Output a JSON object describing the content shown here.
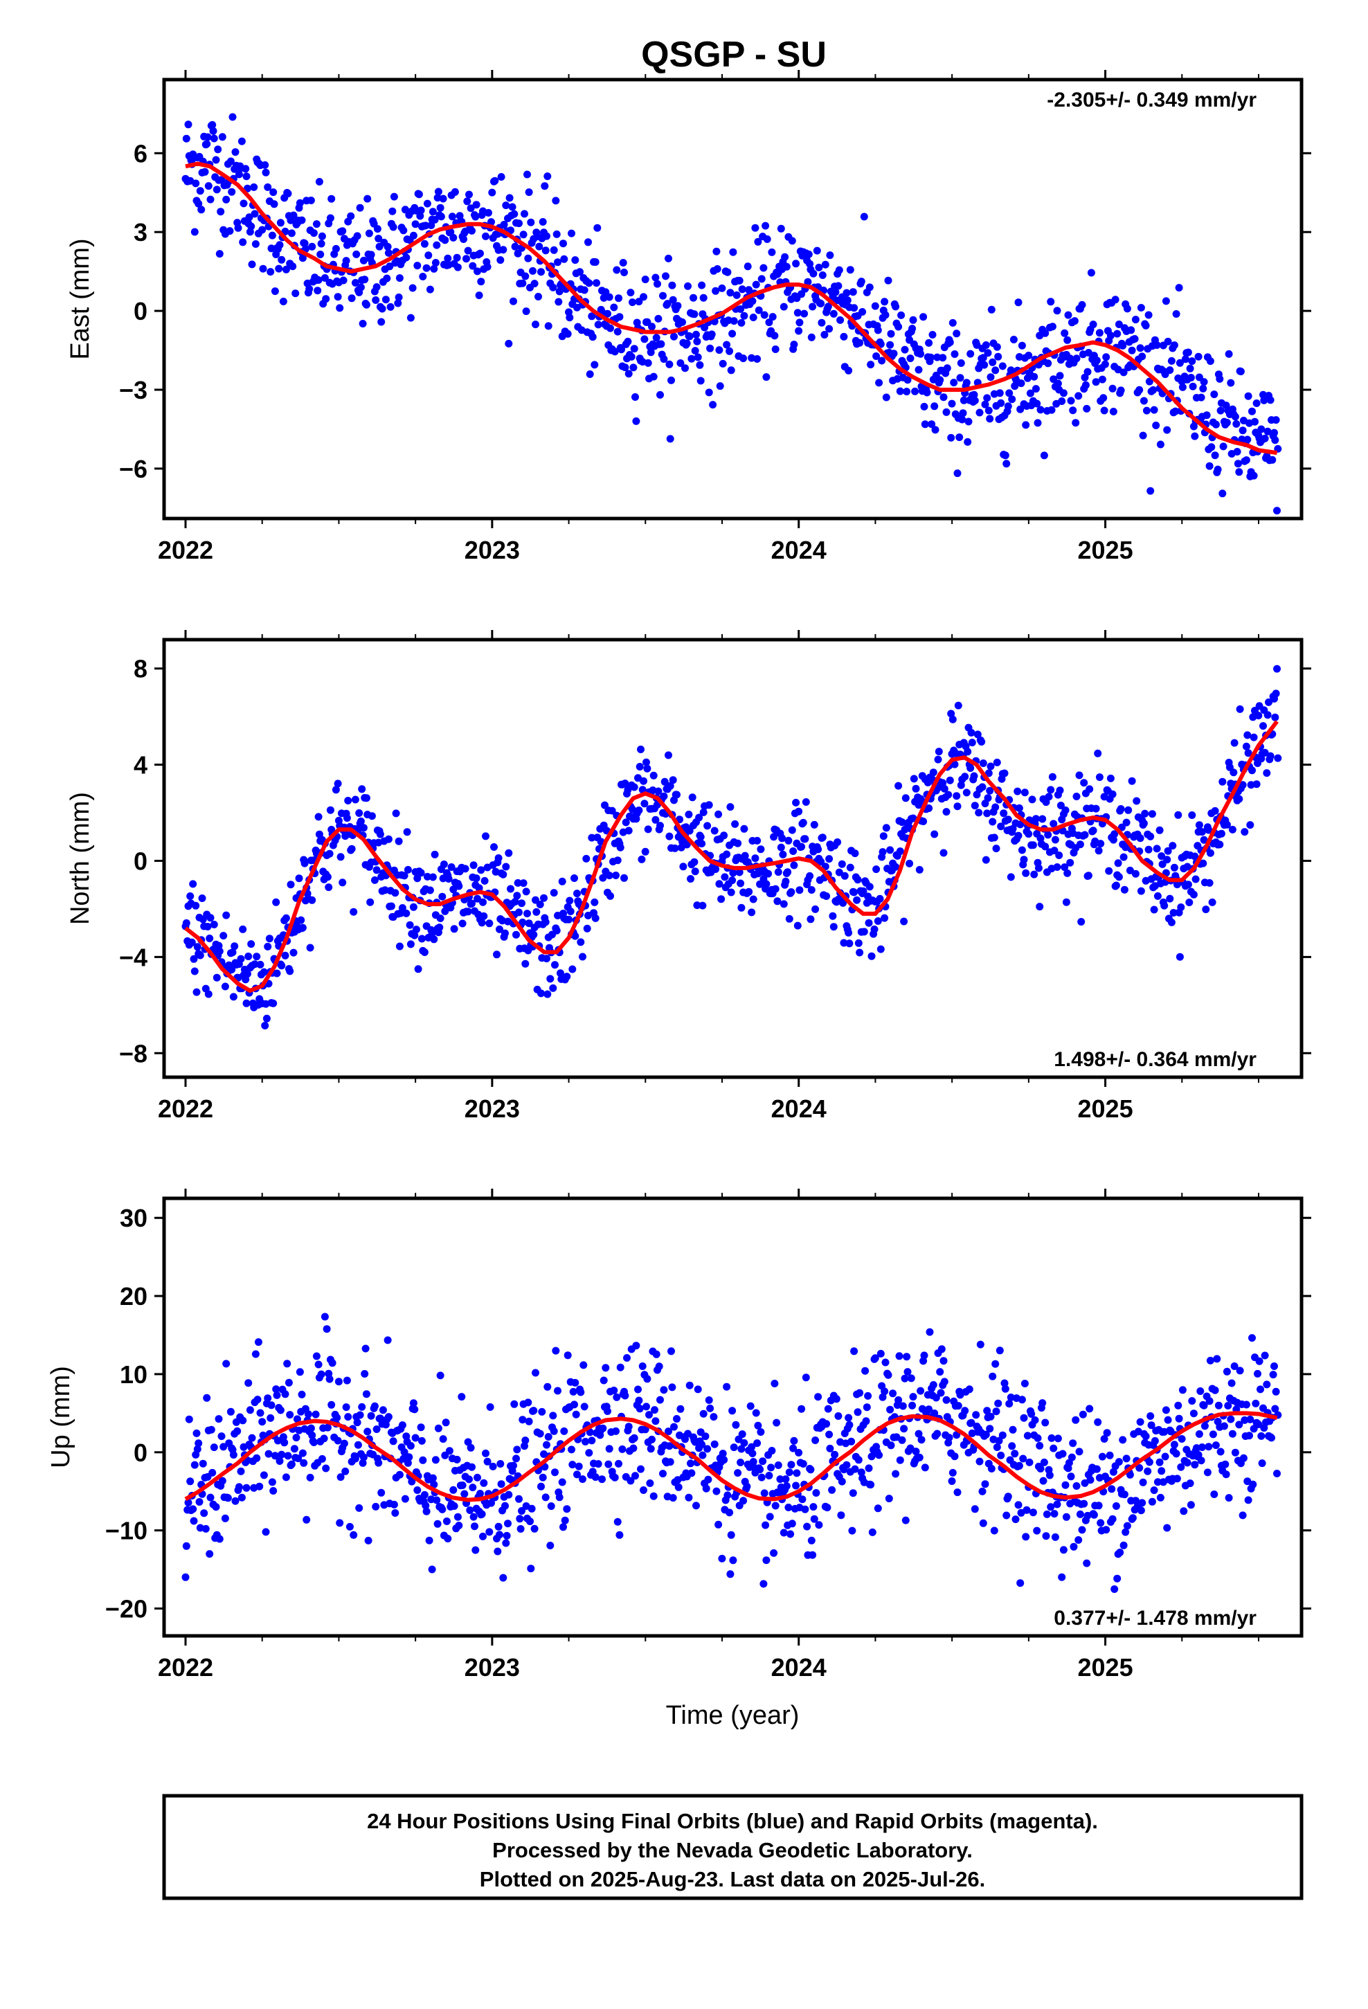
{
  "title": "QSGP - SU",
  "footer": {
    "line1": "24 Hour Positions Using Final Orbits (blue) and Rapid Orbits (magenta).",
    "line2": "Processed by the Nevada Geodetic Laboratory.",
    "line3": "Plotted on 2025-Aug-23. Last data on 2025-Jul-26."
  },
  "colors": {
    "points": "#0000ff",
    "fit": "#ff0000",
    "axis": "#000000"
  },
  "chart_data": [
    {
      "type": "scatter",
      "ylabel": "East (mm)",
      "xlim": [
        2021.93,
        2025.64
      ],
      "ylim": [
        -7.9,
        8.8
      ],
      "x_ticks": [
        2022,
        2023,
        2024,
        2025
      ],
      "y_ticks": [
        -6,
        -3,
        0,
        3,
        6
      ],
      "y_tick_labels": [
        "−6",
        "−3",
        "0",
        "3",
        "6"
      ],
      "rate_label": "-2.305+/- 0.349 mm/yr",
      "rate_position": "top-right",
      "series": [
        {
          "values": "daily positions",
          "x": [
            2022.0,
            2022.08,
            2022.17,
            2022.25,
            2022.33,
            2022.42,
            2022.5,
            2022.58,
            2022.67,
            2022.75,
            2022.83,
            2022.92,
            2023.0,
            2023.08,
            2023.17,
            2023.25,
            2023.33,
            2023.42,
            2023.5,
            2023.58,
            2023.67,
            2023.75,
            2023.83,
            2023.92,
            2024.0,
            2024.08,
            2024.17,
            2024.25,
            2024.33,
            2024.42,
            2024.5,
            2024.58,
            2024.67,
            2024.75,
            2024.83,
            2024.92,
            2025.0,
            2025.08,
            2025.17,
            2025.25,
            2025.33,
            2025.42,
            2025.5,
            2025.56
          ],
          "y": [
            5.4,
            5.6,
            4.8,
            3.7,
            2.7,
            2.0,
            1.6,
            1.6,
            2.0,
            2.6,
            3.0,
            3.2,
            3.2,
            2.8,
            2.0,
            0.9,
            -0.1,
            -0.6,
            -0.8,
            -0.8,
            -0.6,
            -0.3,
            0.2,
            0.7,
            1.0,
            0.8,
            0.2,
            -0.8,
            -1.9,
            -2.6,
            -3.0,
            -3.0,
            -2.8,
            -2.4,
            -1.9,
            -1.5,
            -1.3,
            -1.5,
            -2.2,
            -3.0,
            -3.8,
            -4.6,
            -5.1,
            -5.3
          ]
        },
        {
          "name": "fit",
          "x": [
            2022.0,
            2022.04,
            2022.08,
            2022.12,
            2022.17,
            2022.21,
            2022.25,
            2022.29,
            2022.33,
            2022.37,
            2022.42,
            2022.46,
            2022.5,
            2022.54,
            2022.58,
            2022.62,
            2022.67,
            2022.71,
            2022.75,
            2022.79,
            2022.83,
            2022.87,
            2022.92,
            2022.96,
            2023.0,
            2023.04,
            2023.08,
            2023.12,
            2023.17,
            2023.21,
            2023.25,
            2023.29,
            2023.33,
            2023.37,
            2023.42,
            2023.46,
            2023.5,
            2023.54,
            2023.58,
            2023.62,
            2023.67,
            2023.71,
            2023.75,
            2023.79,
            2023.83,
            2023.87,
            2023.92,
            2023.96,
            2024.0,
            2024.04,
            2024.08,
            2024.12,
            2024.17,
            2024.21,
            2024.25,
            2024.29,
            2024.33,
            2024.37,
            2024.42,
            2024.46,
            2024.5,
            2024.54,
            2024.58,
            2024.62,
            2024.67,
            2024.71,
            2024.75,
            2024.79,
            2024.83,
            2024.87,
            2024.92,
            2024.96,
            2025.0,
            2025.04,
            2025.08,
            2025.12,
            2025.17,
            2025.21,
            2025.25,
            2025.29,
            2025.33,
            2025.37,
            2025.42,
            2025.46,
            2025.5,
            2025.56
          ],
          "y": [
            5.5,
            5.6,
            5.5,
            5.2,
            4.8,
            4.3,
            3.7,
            3.2,
            2.7,
            2.3,
            2.0,
            1.7,
            1.6,
            1.5,
            1.6,
            1.7,
            2.0,
            2.3,
            2.6,
            2.9,
            3.1,
            3.2,
            3.3,
            3.3,
            3.2,
            3.0,
            2.7,
            2.4,
            1.9,
            1.4,
            0.9,
            0.4,
            0.0,
            -0.3,
            -0.6,
            -0.7,
            -0.8,
            -0.8,
            -0.8,
            -0.7,
            -0.5,
            -0.3,
            -0.1,
            0.2,
            0.5,
            0.7,
            0.9,
            1.0,
            1.0,
            0.9,
            0.6,
            0.2,
            -0.3,
            -0.8,
            -1.3,
            -1.8,
            -2.2,
            -2.5,
            -2.8,
            -3.0,
            -3.0,
            -3.0,
            -2.9,
            -2.8,
            -2.6,
            -2.4,
            -2.1,
            -1.8,
            -1.6,
            -1.4,
            -1.3,
            -1.2,
            -1.3,
            -1.5,
            -1.8,
            -2.2,
            -2.7,
            -3.2,
            -3.7,
            -4.1,
            -4.5,
            -4.8,
            -5.0,
            -5.1,
            -5.3,
            -5.4
          ]
        }
      ]
    },
    {
      "type": "scatter",
      "ylabel": "North (mm)",
      "xlim": [
        2021.93,
        2025.64
      ],
      "ylim": [
        -9.0,
        9.2
      ],
      "x_ticks": [
        2022,
        2023,
        2024,
        2025
      ],
      "y_ticks": [
        -8,
        -4,
        0,
        4,
        8
      ],
      "y_tick_labels": [
        "−8",
        "−4",
        "0",
        "4",
        "8"
      ],
      "rate_label": "1.498+/- 0.364 mm/yr",
      "rate_position": "bottom-right",
      "series": [
        {
          "values": "daily positions",
          "x": [
            2022.0,
            2022.08,
            2022.17,
            2022.25,
            2022.33,
            2022.42,
            2022.5,
            2022.58,
            2022.67,
            2022.75,
            2022.83,
            2022.92,
            2023.0,
            2023.08,
            2023.17,
            2023.25,
            2023.33,
            2023.42,
            2023.5,
            2023.58,
            2023.67,
            2023.75,
            2023.83,
            2023.92,
            2024.0,
            2024.08,
            2024.17,
            2024.25,
            2024.33,
            2024.42,
            2024.5,
            2024.58,
            2024.67,
            2024.75,
            2024.83,
            2024.92,
            2025.0,
            2025.08,
            2025.17,
            2025.25,
            2025.33,
            2025.42,
            2025.5,
            2025.56
          ],
          "y": [
            -2.8,
            -3.6,
            -4.6,
            -5.2,
            -3.2,
            0.0,
            1.2,
            1.0,
            -0.4,
            -1.6,
            -1.8,
            -1.4,
            -1.6,
            -2.6,
            -3.6,
            -3.2,
            -0.8,
            1.6,
            2.6,
            2.0,
            0.6,
            -0.2,
            -0.4,
            -0.2,
            0.2,
            -0.2,
            -1.4,
            -2.2,
            0.4,
            3.0,
            4.2,
            3.4,
            2.0,
            1.2,
            1.2,
            1.6,
            1.6,
            1.0,
            -0.4,
            -0.8,
            0.4,
            2.8,
            4.8,
            5.8
          ]
        },
        {
          "name": "fit",
          "x": [
            2022.0,
            2022.04,
            2022.08,
            2022.12,
            2022.17,
            2022.21,
            2022.25,
            2022.29,
            2022.33,
            2022.37,
            2022.42,
            2022.46,
            2022.5,
            2022.54,
            2022.58,
            2022.62,
            2022.67,
            2022.71,
            2022.75,
            2022.79,
            2022.83,
            2022.87,
            2022.92,
            2022.96,
            2023.0,
            2023.04,
            2023.08,
            2023.12,
            2023.17,
            2023.21,
            2023.25,
            2023.29,
            2023.33,
            2023.37,
            2023.42,
            2023.46,
            2023.5,
            2023.54,
            2023.58,
            2023.62,
            2023.67,
            2023.71,
            2023.75,
            2023.79,
            2023.83,
            2023.87,
            2023.92,
            2023.96,
            2024.0,
            2024.04,
            2024.08,
            2024.12,
            2024.17,
            2024.21,
            2024.25,
            2024.29,
            2024.33,
            2024.37,
            2024.42,
            2024.46,
            2024.5,
            2024.54,
            2024.58,
            2024.62,
            2024.67,
            2024.71,
            2024.75,
            2024.79,
            2024.83,
            2024.87,
            2024.92,
            2024.96,
            2025.0,
            2025.04,
            2025.08,
            2025.12,
            2025.17,
            2025.21,
            2025.25,
            2025.29,
            2025.33,
            2025.37,
            2025.42,
            2025.46,
            2025.5,
            2025.56
          ],
          "y": [
            -2.8,
            -3.2,
            -3.8,
            -4.5,
            -5.1,
            -5.4,
            -5.2,
            -4.4,
            -3.2,
            -1.7,
            -0.3,
            0.8,
            1.3,
            1.3,
            0.9,
            0.2,
            -0.6,
            -1.2,
            -1.6,
            -1.8,
            -1.8,
            -1.6,
            -1.4,
            -1.3,
            -1.4,
            -1.9,
            -2.6,
            -3.3,
            -3.8,
            -3.8,
            -3.2,
            -2.1,
            -0.7,
            0.8,
            1.9,
            2.6,
            2.8,
            2.6,
            2.0,
            1.2,
            0.5,
            0.0,
            -0.2,
            -0.3,
            -0.3,
            -0.2,
            -0.1,
            0.0,
            0.1,
            0.0,
            -0.4,
            -1.1,
            -1.8,
            -2.2,
            -2.2,
            -1.6,
            -0.4,
            1.2,
            2.6,
            3.6,
            4.2,
            4.3,
            4.0,
            3.3,
            2.6,
            1.9,
            1.5,
            1.3,
            1.3,
            1.5,
            1.7,
            1.8,
            1.7,
            1.3,
            0.7,
            0.0,
            -0.5,
            -0.8,
            -0.8,
            -0.3,
            0.6,
            1.7,
            2.9,
            3.9,
            4.8,
            5.8
          ]
        }
      ]
    },
    {
      "type": "scatter",
      "ylabel": "Up (mm)",
      "xlim": [
        2021.93,
        2025.64
      ],
      "ylim": [
        -23.5,
        32.5
      ],
      "x_ticks": [
        2022,
        2023,
        2024,
        2025
      ],
      "y_ticks": [
        -20,
        -10,
        0,
        10,
        20,
        30
      ],
      "y_tick_labels": [
        "−20",
        "−10",
        "0",
        "10",
        "20",
        "30"
      ],
      "rate_label": "0.377+/- 1.478 mm/yr",
      "rate_position": "bottom-right",
      "xlabel": "Time (year)",
      "series": [
        {
          "values": "daily positions",
          "x": [
            2022.0,
            2022.08,
            2022.17,
            2022.25,
            2022.33,
            2022.42,
            2022.5,
            2022.58,
            2022.67,
            2022.75,
            2022.83,
            2022.92,
            2023.0,
            2023.08,
            2023.17,
            2023.25,
            2023.33,
            2023.42,
            2023.5,
            2023.58,
            2023.67,
            2023.75,
            2023.83,
            2023.92,
            2024.0,
            2024.08,
            2024.17,
            2024.25,
            2024.33,
            2024.42,
            2024.5,
            2024.58,
            2024.67,
            2024.75,
            2024.83,
            2024.92,
            2025.0,
            2025.08,
            2025.17,
            2025.25,
            2025.33,
            2025.42,
            2025.5,
            2025.56
          ],
          "y": [
            -6.0,
            -4.0,
            -1.0,
            1.5,
            3.0,
            4.0,
            3.5,
            2.0,
            -0.5,
            -3.0,
            -5.0,
            -6.0,
            -5.5,
            -4.0,
            -1.5,
            1.5,
            3.5,
            4.5,
            4.0,
            2.5,
            0.5,
            -2.0,
            -4.5,
            -5.5,
            -5.0,
            -3.0,
            -0.5,
            2.0,
            4.0,
            5.0,
            4.5,
            3.5,
            1.5,
            -1.0,
            -3.5,
            -5.0,
            -5.0,
            -3.5,
            -1.0,
            1.0,
            3.0,
            4.5,
            5.0,
            4.5
          ]
        },
        {
          "name": "fit",
          "x": [
            2022.0,
            2022.04,
            2022.08,
            2022.12,
            2022.17,
            2022.21,
            2022.25,
            2022.29,
            2022.33,
            2022.37,
            2022.42,
            2022.46,
            2022.5,
            2022.54,
            2022.58,
            2022.62,
            2022.67,
            2022.71,
            2022.75,
            2022.79,
            2022.83,
            2022.87,
            2022.92,
            2022.96,
            2023.0,
            2023.04,
            2023.08,
            2023.12,
            2023.17,
            2023.21,
            2023.25,
            2023.29,
            2023.33,
            2023.37,
            2023.42,
            2023.46,
            2023.5,
            2023.54,
            2023.58,
            2023.62,
            2023.67,
            2023.71,
            2023.75,
            2023.79,
            2023.83,
            2023.87,
            2023.92,
            2023.96,
            2024.0,
            2024.04,
            2024.08,
            2024.12,
            2024.17,
            2024.21,
            2024.25,
            2024.29,
            2024.33,
            2024.37,
            2024.42,
            2024.46,
            2024.5,
            2024.54,
            2024.58,
            2024.62,
            2024.67,
            2024.71,
            2024.75,
            2024.79,
            2024.83,
            2024.87,
            2024.92,
            2024.96,
            2025.0,
            2025.04,
            2025.08,
            2025.12,
            2025.17,
            2025.21,
            2025.25,
            2025.29,
            2025.33,
            2025.37,
            2025.42,
            2025.46,
            2025.5,
            2025.56
          ],
          "y": [
            -6.0,
            -5.1,
            -4.0,
            -2.8,
            -1.4,
            0.0,
            1.2,
            2.3,
            3.1,
            3.7,
            4.0,
            3.9,
            3.5,
            2.8,
            1.8,
            0.6,
            -0.7,
            -2.0,
            -3.3,
            -4.4,
            -5.2,
            -5.8,
            -6.1,
            -6.0,
            -5.6,
            -4.8,
            -3.8,
            -2.6,
            -1.2,
            0.2,
            1.5,
            2.6,
            3.5,
            4.1,
            4.3,
            4.1,
            3.6,
            2.8,
            1.7,
            0.4,
            -0.9,
            -2.3,
            -3.6,
            -4.6,
            -5.4,
            -5.9,
            -6.0,
            -5.7,
            -5.0,
            -4.0,
            -2.7,
            -1.3,
            0.1,
            1.5,
            2.7,
            3.7,
            4.3,
            4.6,
            4.5,
            4.1,
            3.3,
            2.3,
            1.0,
            -0.4,
            -1.8,
            -3.1,
            -4.2,
            -5.1,
            -5.6,
            -5.8,
            -5.6,
            -5.1,
            -4.3,
            -3.3,
            -2.1,
            -0.9,
            0.4,
            1.6,
            2.7,
            3.6,
            4.3,
            4.8,
            5.0,
            5.0,
            4.9,
            4.4
          ]
        }
      ]
    }
  ]
}
